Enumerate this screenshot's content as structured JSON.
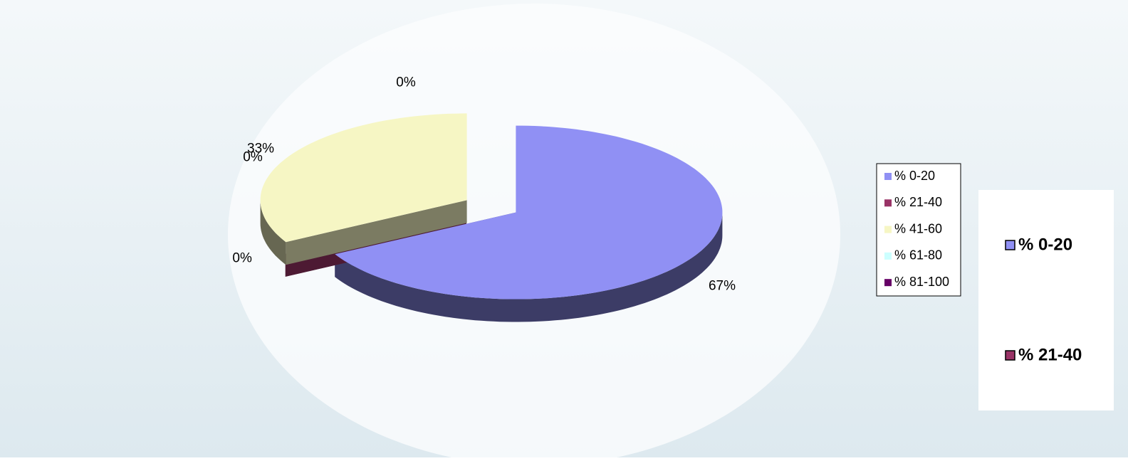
{
  "chart_data": {
    "type": "pie3d",
    "categories": [
      "% 0-20",
      "% 21-40",
      "% 41-60",
      "% 61-80",
      "% 81-100"
    ],
    "values": [
      67,
      0,
      33,
      0,
      0
    ],
    "value_labels": [
      "67%",
      "0%",
      "33%",
      "0%",
      "0%"
    ],
    "colors": [
      "#9090f4",
      "#993366",
      "#f6f6c4",
      "#ccffff",
      "#660066"
    ],
    "legend": "right"
  },
  "side_panel": {
    "legend": [
      "% 0-20",
      "% 21-40"
    ],
    "colors": [
      "#9090f4",
      "#993366"
    ]
  }
}
